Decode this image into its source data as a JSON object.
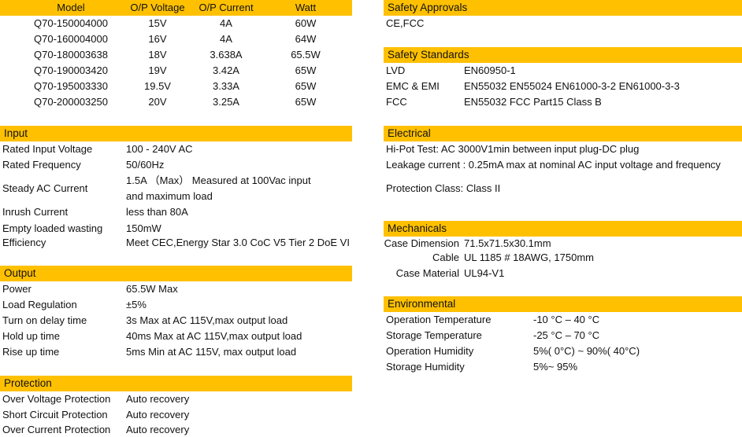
{
  "colors": {
    "header_bar": "#FFC000",
    "text": "#111111"
  },
  "models": {
    "headers": [
      "Model",
      "O/P Voltage",
      "O/P Current",
      "Watt"
    ],
    "rows": [
      [
        "Q70-150004000",
        "15V",
        "4A",
        "60W"
      ],
      [
        "Q70-160004000",
        "16V",
        "4A",
        "64W"
      ],
      [
        "Q70-180003638",
        "18V",
        "3.638A",
        "65.5W"
      ],
      [
        "Q70-190003420",
        "19V",
        "3.42A",
        "65W"
      ],
      [
        "Q70-195003330",
        "19.5V",
        "3.33A",
        "65W"
      ],
      [
        "Q70-200003250",
        "20V",
        "3.25A",
        "65W"
      ]
    ]
  },
  "input": {
    "title": "Input",
    "rows": [
      [
        "Rated Input Voltage",
        "100 - 240V AC"
      ],
      [
        "Rated Frequency",
        "50/60Hz"
      ],
      [
        "Steady AC Current",
        "1.5A （Max） Measured at 100Vac input",
        "and maximum load"
      ],
      [
        "Inrush Current",
        "less than 80A"
      ],
      [
        "Empty loaded wasting",
        "150mW"
      ],
      [
        "Efficiency",
        "Meet CEC,Energy Star 3.0 CoC V5 Tier 2 DoE VI"
      ]
    ]
  },
  "output": {
    "title": "Output",
    "rows": [
      [
        "Power",
        "65.5W Max"
      ],
      [
        "Load Regulation",
        "±5%"
      ],
      [
        "Turn on delay time",
        "3s Max at AC 115V,max output load"
      ],
      [
        "Hold up time",
        "40ms Max at AC 115V,max output load"
      ],
      [
        "Rise up time",
        "5ms Min at AC 115V, max output load"
      ]
    ]
  },
  "protection": {
    "title": "Protection",
    "rows": [
      [
        "Over Voltage Protection",
        "Auto recovery"
      ],
      [
        "Short Circuit Protection",
        "Auto recovery"
      ],
      [
        "Over Current Protection",
        "Auto recovery"
      ]
    ]
  },
  "safety_approvals": {
    "title": "Safety Approvals",
    "rows": [
      [
        "CE,FCC"
      ]
    ]
  },
  "safety_standards": {
    "title": "Safety Standards",
    "rows": [
      [
        "LVD",
        "EN60950-1"
      ],
      [
        "EMC & EMI",
        "EN55032 EN55024 EN61000-3-2 EN61000-3-3"
      ],
      [
        "FCC",
        "EN55032 FCC Part15 Class B"
      ]
    ]
  },
  "electrical": {
    "title": "Electrical",
    "rows": [
      [
        "Hi-Pot Test: AC 3000V1min between input plug-DC plug"
      ],
      [
        "Leakage current : 0.25mA max at nominal AC input voltage and frequency"
      ],
      [
        "Protection Class: Class II"
      ]
    ]
  },
  "mechanicals": {
    "title": "Mechanicals",
    "rows": [
      [
        "Case Dimension",
        "71.5x71.5x30.1mm"
      ],
      [
        "Cable",
        "UL 1185 # 18AWG, 1750mm"
      ],
      [
        "Case Material",
        "UL94-V1"
      ]
    ]
  },
  "environmental": {
    "title": "Environmental",
    "rows": [
      [
        "Operation Temperature",
        "-10 °C – 40 °C"
      ],
      [
        "Storage Temperature",
        "-25 °C – 70 °C"
      ],
      [
        "Operation Humidity",
        "5%( 0°C) ~ 90%( 40°C)"
      ],
      [
        "Storage Humidity",
        "5%~ 95%"
      ]
    ]
  }
}
